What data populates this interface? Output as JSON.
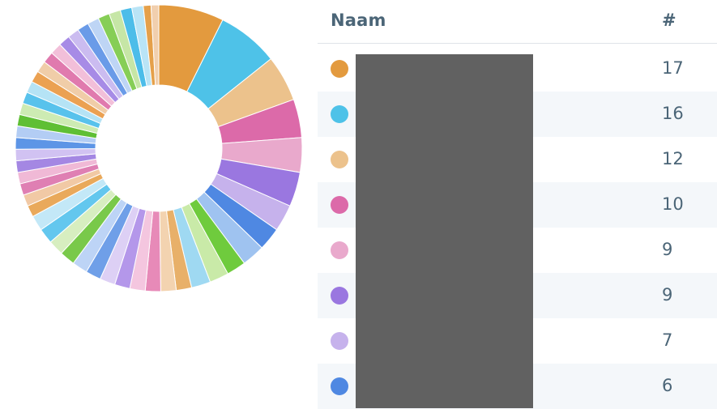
{
  "table": {
    "header": {
      "name": "Naam",
      "count": "#"
    },
    "rows": [
      {
        "count": "17",
        "color": "#e39a3e"
      },
      {
        "count": "16",
        "color": "#4ec2e8"
      },
      {
        "count": "12",
        "color": "#ecc28c"
      },
      {
        "count": "10",
        "color": "#dc6aa9"
      },
      {
        "count": "9",
        "color": "#e9a9cc"
      },
      {
        "count": "9",
        "color": "#9a77e0"
      },
      {
        "count": "7",
        "color": "#c6b2ec"
      },
      {
        "count": "6",
        "color": "#4f88e2"
      }
    ]
  },
  "chart_data": {
    "type": "pie",
    "donut": true,
    "values": [
      17,
      16,
      12,
      10,
      9,
      9,
      7,
      6,
      6,
      5,
      5,
      5,
      4,
      4,
      4,
      4,
      4,
      4,
      4,
      4,
      4,
      4,
      4,
      4,
      3,
      3,
      3,
      3,
      3,
      3,
      3,
      3,
      3,
      3,
      3,
      3,
      3,
      3,
      3,
      3,
      3,
      3,
      3,
      3,
      3,
      3,
      3,
      3,
      2,
      2
    ],
    "colors": [
      "#e39a3e",
      "#4ec2e8",
      "#ecc28c",
      "#dc6aa9",
      "#e9a9cc",
      "#9a77e0",
      "#c6b2ec",
      "#4f88e2",
      "#9fc3f0",
      "#6fcb3d",
      "#c9eaa8",
      "#9fd9f2",
      "#e8b069",
      "#f3d3b0",
      "#e78ab8",
      "#f4c6df",
      "#b497ea",
      "#ddd0f5",
      "#6f9fe8",
      "#bdd4f6",
      "#79c94a",
      "#d7eec0",
      "#63c7ee",
      "#c3e8f7",
      "#e9a95b",
      "#f1c9a5",
      "#df7fb3",
      "#f0b9d6",
      "#a487e3",
      "#d1c2f2",
      "#5d95e6",
      "#b3cdf4",
      "#5fbf34",
      "#cdebb3",
      "#58c2ec",
      "#b5e3f5",
      "#eba152",
      "#f0cda8",
      "#e07aae",
      "#f2bfd9",
      "#a78be6",
      "#cbbcf0",
      "#6a9be8",
      "#bed5f5",
      "#86ce56",
      "#c6e6a6",
      "#4cbde9",
      "#b9e4f6",
      "#e5a04a",
      "#f1cfae"
    ]
  }
}
